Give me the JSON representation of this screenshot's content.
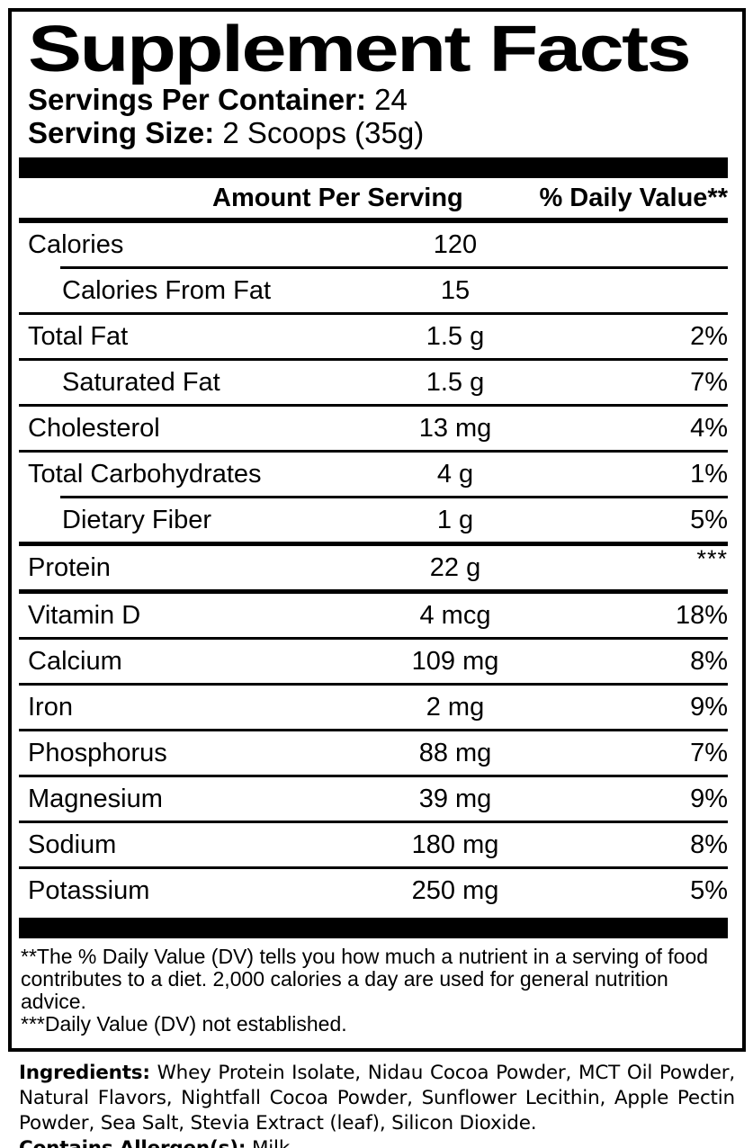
{
  "header": {
    "title": "Supplement Facts",
    "servings_per_container_label": "Servings Per Container:",
    "servings_per_container_value": "24",
    "serving_size_label": "Serving Size:",
    "serving_size_value": "2 Scoops (35g)"
  },
  "table": {
    "col_amount": "Amount Per Serving",
    "col_dv": "% Daily Value**",
    "rows": [
      {
        "name": "Calories",
        "amount": "120",
        "dv": "",
        "indent": false,
        "rule": "none",
        "dv_sup": false
      },
      {
        "name": "Calories From Fat",
        "amount": "15",
        "dv": "",
        "indent": true,
        "rule": "indent",
        "dv_sup": false
      },
      {
        "name": "Total Fat",
        "amount": "1.5 g",
        "dv": "2%",
        "indent": false,
        "rule": "thin",
        "dv_sup": false
      },
      {
        "name": "Saturated Fat",
        "amount": "1.5 g",
        "dv": "7%",
        "indent": true,
        "rule": "thin",
        "dv_sup": false
      },
      {
        "name": "Cholesterol",
        "amount": "13 mg",
        "dv": "4%",
        "indent": false,
        "rule": "thin",
        "dv_sup": false
      },
      {
        "name": "Total Carbohydrates",
        "amount": "4 g",
        "dv": "1%",
        "indent": false,
        "rule": "thin",
        "dv_sup": false
      },
      {
        "name": "Dietary Fiber",
        "amount": "1 g",
        "dv": "5%",
        "indent": true,
        "rule": "indent",
        "dv_sup": false
      },
      {
        "name": "Protein",
        "amount": "22 g",
        "dv": "***",
        "indent": false,
        "rule": "thick",
        "dv_sup": true
      },
      {
        "name": "Vitamin D",
        "amount": "4 mcg",
        "dv": "18%",
        "indent": false,
        "rule": "thick",
        "dv_sup": false
      },
      {
        "name": "Calcium",
        "amount": "109 mg",
        "dv": "8%",
        "indent": false,
        "rule": "thin",
        "dv_sup": false
      },
      {
        "name": "Iron",
        "amount": "2 mg",
        "dv": "9%",
        "indent": false,
        "rule": "thin",
        "dv_sup": false
      },
      {
        "name": "Phosphorus",
        "amount": "88 mg",
        "dv": "7%",
        "indent": false,
        "rule": "thin",
        "dv_sup": false
      },
      {
        "name": "Magnesium",
        "amount": "39 mg",
        "dv": "9%",
        "indent": false,
        "rule": "thin",
        "dv_sup": false
      },
      {
        "name": "Sodium",
        "amount": "180 mg",
        "dv": "8%",
        "indent": false,
        "rule": "thin",
        "dv_sup": false
      },
      {
        "name": "Potassium",
        "amount": "250 mg",
        "dv": "5%",
        "indent": false,
        "rule": "thin",
        "dv_sup": false
      }
    ]
  },
  "footnotes": {
    "dv_note": "**The % Daily Value (DV) tells you how much a nutrient in a serving of food contributes to a diet. 2,000 calories a day are used for general nutrition advice.",
    "not_established_note": "***Daily Value (DV) not established."
  },
  "ingredients": {
    "label": "Ingredients:",
    "text": "Whey Protein Isolate, Nidau Cocoa Powder, MCT Oil Powder, Natural Flavors, Nightfall Cocoa Powder, Sunflower Lecithin, Apple Pectin Powder, Sea Salt, Stevia Extract (leaf), Silicon Dioxide.",
    "allergen_label": "Contains Allergen(s):",
    "allergen_value": "Milk"
  },
  "colors": {
    "ink": "#000000",
    "paper": "#ffffff"
  }
}
